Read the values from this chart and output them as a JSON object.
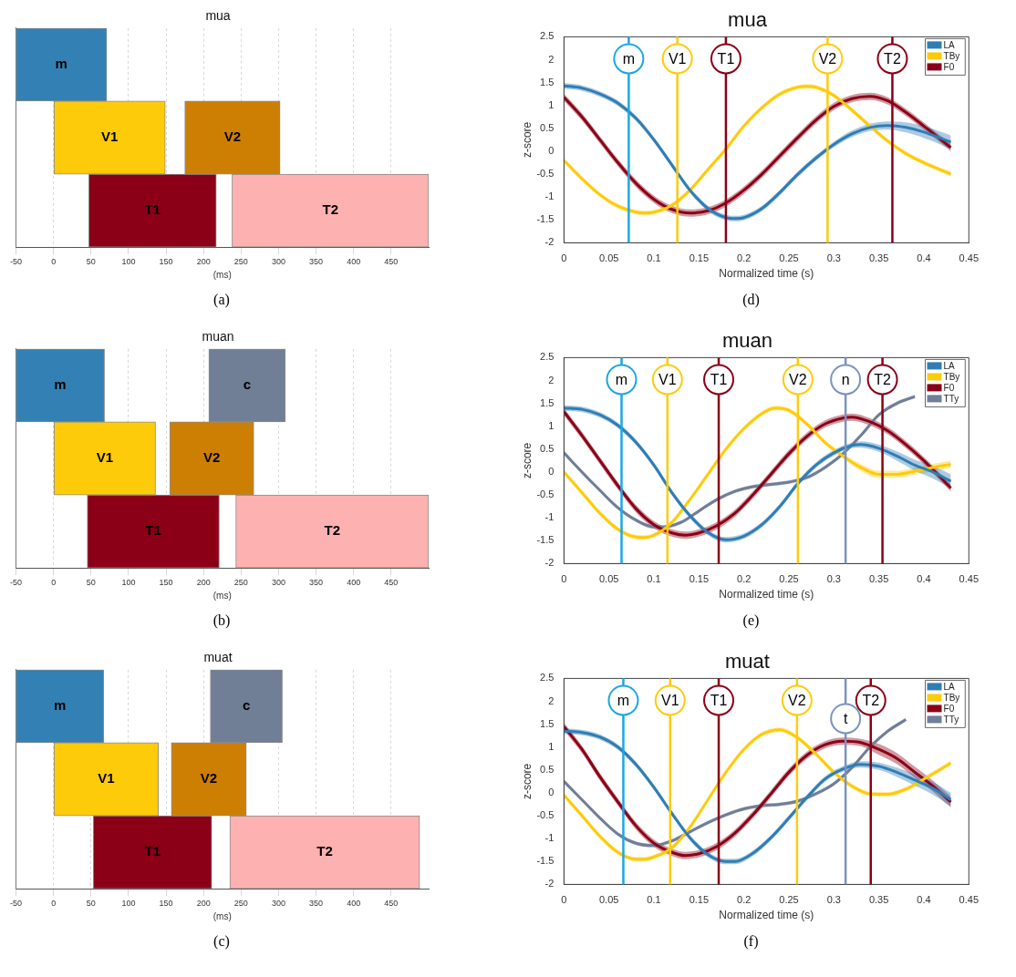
{
  "chart_data": [
    {
      "type": "bar",
      "orientation": "horizontal",
      "title": "mua",
      "xlabel": "(ms)",
      "categories": [
        null,
        null,
        null
      ],
      "xlim": [
        -50,
        500
      ],
      "xticks": [
        -50,
        0,
        50,
        100,
        150,
        200,
        250,
        300,
        350,
        400,
        450
      ],
      "grid": "x",
      "tick_labels": "x",
      "annotations": [
        "(a)"
      ],
      "series": [
        {
          "name": "m",
          "color": "#3380b4",
          "base": [
            -50,
            null,
            null
          ],
          "values": [
            121,
            null,
            null
          ]
        },
        {
          "name": "V1",
          "color": "#fecb0b",
          "base": [
            null,
            0,
            null
          ],
          "values": [
            null,
            149,
            null
          ]
        },
        {
          "name": "V2",
          "color": "#cd7f03",
          "base": [
            null,
            175,
            null
          ],
          "values": [
            null,
            127,
            null
          ]
        },
        {
          "name": "T1",
          "color": "#8b0016",
          "base": [
            null,
            null,
            47
          ],
          "values": [
            null,
            null,
            170
          ]
        },
        {
          "name": "T2",
          "color": "#feb1b1",
          "base": [
            null,
            null,
            238
          ],
          "values": [
            null,
            null,
            262
          ]
        }
      ]
    },
    {
      "type": "line",
      "title": "mua",
      "xlabel": "Normalized time (s)",
      "ylabel": "z-score",
      "xlim": [
        0,
        0.45
      ],
      "ylim": [
        -2,
        2.5
      ],
      "xticks": [
        0,
        0.05,
        0.1,
        0.15,
        0.2,
        0.25,
        0.3,
        0.35,
        0.4,
        0.45
      ],
      "yticks": [
        -2,
        -1.5,
        -1,
        -0.5,
        0,
        0.5,
        1,
        1.5,
        2,
        2.5
      ],
      "legend": "top right",
      "annotations": [
        "(d)"
      ],
      "ref_lines": [
        {
          "axis": "x",
          "value": 0.072,
          "label": "m",
          "color": "#1ca7e6"
        },
        {
          "axis": "x",
          "value": 0.126,
          "label": "V1",
          "color": "#fecb0b"
        },
        {
          "axis": "x",
          "value": 0.18,
          "label": "T1",
          "color": "#8b0016"
        },
        {
          "axis": "x",
          "value": 0.293,
          "label": "V2",
          "color": "#fecb0b"
        },
        {
          "axis": "x",
          "value": 0.365,
          "label": "T2",
          "color": "#8b0016"
        }
      ],
      "series": [
        {
          "name": "LA",
          "color": "#2f7db5",
          "x": [
            0,
            0.02,
            0.04,
            0.06,
            0.08,
            0.1,
            0.12,
            0.14,
            0.16,
            0.18,
            0.19,
            0.2,
            0.22,
            0.24,
            0.26,
            0.28,
            0.3,
            0.32,
            0.34,
            0.36,
            0.38,
            0.4,
            0.43
          ],
          "values": [
            1.43,
            1.38,
            1.25,
            1.05,
            0.72,
            0.25,
            -0.3,
            -0.85,
            -1.25,
            -1.45,
            -1.47,
            -1.45,
            -1.25,
            -0.9,
            -0.5,
            -0.15,
            0.15,
            0.38,
            0.52,
            0.56,
            0.52,
            0.42,
            0.2
          ],
          "lower": [
            1.37,
            1.32,
            1.19,
            0.99,
            0.66,
            0.19,
            -0.36,
            -0.91,
            -1.31,
            -1.51,
            -1.53,
            -1.51,
            -1.31,
            -0.96,
            -0.56,
            -0.21,
            0.09,
            0.31,
            0.44,
            0.47,
            0.41,
            0.29,
            0.05
          ],
          "upper": [
            1.49,
            1.44,
            1.31,
            1.11,
            0.78,
            0.31,
            -0.24,
            -0.79,
            -1.19,
            -1.39,
            -1.41,
            -1.39,
            -1.19,
            -0.84,
            -0.44,
            -0.09,
            0.21,
            0.45,
            0.6,
            0.65,
            0.63,
            0.55,
            0.35
          ]
        },
        {
          "name": "TBy",
          "color": "#fecb0b",
          "x": [
            0,
            0.02,
            0.04,
            0.06,
            0.08,
            0.09,
            0.1,
            0.12,
            0.14,
            0.16,
            0.18,
            0.2,
            0.22,
            0.24,
            0.26,
            0.27,
            0.28,
            0.3,
            0.32,
            0.34,
            0.36,
            0.38,
            0.4,
            0.43
          ],
          "values": [
            -0.2,
            -0.6,
            -0.95,
            -1.2,
            -1.33,
            -1.35,
            -1.33,
            -1.18,
            -0.85,
            -0.4,
            0.05,
            0.55,
            0.95,
            1.25,
            1.4,
            1.42,
            1.4,
            1.22,
            0.9,
            0.55,
            0.22,
            -0.05,
            -0.25,
            -0.5
          ],
          "lower": [
            -0.25,
            -0.65,
            -1,
            -1.25,
            -1.38,
            -1.4,
            -1.38,
            -1.23,
            -0.9,
            -0.45,
            0,
            0.5,
            0.9,
            1.2,
            1.35,
            1.37,
            1.35,
            1.17,
            0.85,
            0.5,
            0.17,
            -0.1,
            -0.3,
            -0.55
          ],
          "upper": [
            -0.15,
            -0.55,
            -0.9,
            -1.15,
            -1.28,
            -1.3,
            -1.28,
            -1.13,
            -0.8,
            -0.35,
            0.1,
            0.6,
            1,
            1.3,
            1.45,
            1.47,
            1.45,
            1.27,
            0.95,
            0.6,
            0.27,
            0,
            -0.2,
            -0.45
          ]
        },
        {
          "name": "F0",
          "color": "#8b0016",
          "x": [
            0,
            0.02,
            0.04,
            0.06,
            0.08,
            0.1,
            0.12,
            0.14,
            0.16,
            0.18,
            0.2,
            0.22,
            0.24,
            0.26,
            0.28,
            0.3,
            0.32,
            0.34,
            0.36,
            0.38,
            0.4,
            0.43
          ],
          "values": [
            1.18,
            0.75,
            0.25,
            -0.25,
            -0.7,
            -1.05,
            -1.27,
            -1.35,
            -1.3,
            -1.13,
            -0.85,
            -0.5,
            -0.1,
            0.3,
            0.68,
            0.98,
            1.15,
            1.2,
            1.1,
            0.85,
            0.55,
            0.08
          ],
          "lower": [
            1.1,
            0.67,
            0.17,
            -0.33,
            -0.78,
            -1.13,
            -1.35,
            -1.43,
            -1.38,
            -1.21,
            -0.93,
            -0.58,
            -0.18,
            0.22,
            0.6,
            0.9,
            1.07,
            1.12,
            1.02,
            0.77,
            0.47,
            0
          ],
          "upper": [
            1.26,
            0.83,
            0.33,
            -0.17,
            -0.62,
            -0.97,
            -1.19,
            -1.27,
            -1.22,
            -1.05,
            -0.77,
            -0.42,
            -0.02,
            0.38,
            0.76,
            1.06,
            1.23,
            1.28,
            1.18,
            0.93,
            0.63,
            0.16
          ]
        }
      ]
    },
    {
      "type": "bar",
      "orientation": "horizontal",
      "title": "muan",
      "xlabel": "(ms)",
      "categories": [
        null,
        null,
        null
      ],
      "xlim": [
        -50,
        500
      ],
      "xticks": [
        -50,
        0,
        50,
        100,
        150,
        200,
        250,
        300,
        350,
        400,
        450
      ],
      "grid": "x",
      "tick_labels": "x",
      "annotations": [
        "(b)"
      ],
      "series": [
        {
          "name": "m",
          "color": "#3380b4",
          "base": [
            -50,
            null,
            null
          ],
          "values": [
            118,
            null,
            null
          ]
        },
        {
          "name": "c",
          "color": "#707e96",
          "base": [
            207,
            null,
            null
          ],
          "values": [
            102,
            null,
            null
          ]
        },
        {
          "name": "V1",
          "color": "#fecb0b",
          "base": [
            null,
            0,
            null
          ],
          "values": [
            null,
            136,
            null
          ]
        },
        {
          "name": "V2",
          "color": "#cd7f03",
          "base": [
            null,
            155,
            null
          ],
          "values": [
            null,
            112,
            null
          ]
        },
        {
          "name": "T1",
          "color": "#8b0016",
          "base": [
            null,
            null,
            45
          ],
          "values": [
            null,
            null,
            176
          ]
        },
        {
          "name": "T2",
          "color": "#feb1b1",
          "base": [
            null,
            null,
            243
          ],
          "values": [
            null,
            null,
            257
          ]
        }
      ]
    },
    {
      "type": "line",
      "title": "muan",
      "xlabel": "Normalized time (s)",
      "ylabel": "z-score",
      "xlim": [
        0,
        0.45
      ],
      "ylim": [
        -2,
        2.5
      ],
      "xticks": [
        0,
        0.05,
        0.1,
        0.15,
        0.2,
        0.25,
        0.3,
        0.35,
        0.4,
        0.45
      ],
      "yticks": [
        -2,
        -1.5,
        -1,
        -0.5,
        0,
        0.5,
        1,
        1.5,
        2,
        2.5
      ],
      "legend": "top right",
      "annotations": [
        "(e)"
      ],
      "ref_lines": [
        {
          "axis": "x",
          "value": 0.064,
          "label": "m",
          "color": "#1ca7e6"
        },
        {
          "axis": "x",
          "value": 0.115,
          "label": "V1",
          "color": "#fecb0b"
        },
        {
          "axis": "x",
          "value": 0.172,
          "label": "T1",
          "color": "#8b0016"
        },
        {
          "axis": "x",
          "value": 0.26,
          "label": "V2",
          "color": "#fecb0b"
        },
        {
          "axis": "x",
          "value": 0.354,
          "label": "T2",
          "color": "#8b0016"
        },
        {
          "axis": "x",
          "value": 0.313,
          "label": "n",
          "color": "#7b93bf"
        }
      ],
      "series": [
        {
          "name": "LA",
          "color": "#2f7db5",
          "x": [
            0,
            0.02,
            0.04,
            0.06,
            0.08,
            0.1,
            0.12,
            0.14,
            0.16,
            0.18,
            0.2,
            0.22,
            0.24,
            0.26,
            0.28,
            0.3,
            0.32,
            0.33,
            0.35,
            0.37,
            0.39,
            0.41,
            0.43
          ],
          "values": [
            1.4,
            1.37,
            1.25,
            1.02,
            0.65,
            0.15,
            -0.45,
            -0.95,
            -1.32,
            -1.48,
            -1.4,
            -1.15,
            -0.75,
            -0.25,
            0.15,
            0.42,
            0.58,
            0.6,
            0.52,
            0.35,
            0.15,
            0,
            -0.2
          ],
          "lower": [
            1.34,
            1.31,
            1.19,
            0.96,
            0.59,
            0.09,
            -0.51,
            -1.01,
            -1.38,
            -1.54,
            -1.46,
            -1.21,
            -0.81,
            -0.31,
            0.09,
            0.36,
            0.52,
            0.53,
            0.44,
            0.25,
            0.03,
            -0.14,
            -0.35
          ],
          "upper": [
            1.46,
            1.43,
            1.31,
            1.08,
            0.71,
            0.21,
            -0.39,
            -0.89,
            -1.26,
            -1.42,
            -1.34,
            -1.09,
            -0.69,
            -0.19,
            0.21,
            0.48,
            0.64,
            0.67,
            0.6,
            0.45,
            0.27,
            0.14,
            -0.05
          ]
        },
        {
          "name": "TBy",
          "color": "#fecb0b",
          "x": [
            0,
            0.02,
            0.04,
            0.06,
            0.08,
            0.09,
            0.1,
            0.12,
            0.14,
            0.16,
            0.18,
            0.2,
            0.22,
            0.235,
            0.25,
            0.27,
            0.29,
            0.31,
            0.33,
            0.35,
            0.37,
            0.39,
            0.41,
            0.43
          ],
          "values": [
            0,
            -0.45,
            -0.9,
            -1.25,
            -1.42,
            -1.43,
            -1.38,
            -1.1,
            -0.6,
            -0.05,
            0.5,
            0.95,
            1.28,
            1.4,
            1.35,
            1.05,
            0.65,
            0.35,
            0.1,
            -0.05,
            -0.05,
            0.02,
            0.1,
            0.17
          ],
          "lower": [
            -0.05,
            -0.5,
            -0.95,
            -1.3,
            -1.47,
            -1.48,
            -1.43,
            -1.15,
            -0.65,
            -0.1,
            0.45,
            0.9,
            1.23,
            1.35,
            1.3,
            1,
            0.6,
            0.3,
            0.02,
            -0.13,
            -0.13,
            -0.06,
            0.02,
            0.09
          ],
          "upper": [
            0.05,
            -0.4,
            -0.85,
            -1.2,
            -1.37,
            -1.38,
            -1.33,
            -1.05,
            -0.55,
            0,
            0.55,
            1,
            1.33,
            1.45,
            1.4,
            1.1,
            0.7,
            0.4,
            0.18,
            0.03,
            0.03,
            0.1,
            0.18,
            0.25
          ]
        },
        {
          "name": "F0",
          "color": "#8b0016",
          "x": [
            0,
            0.02,
            0.04,
            0.06,
            0.08,
            0.1,
            0.12,
            0.135,
            0.15,
            0.17,
            0.19,
            0.21,
            0.23,
            0.25,
            0.27,
            0.29,
            0.31,
            0.32,
            0.34,
            0.36,
            0.38,
            0.4,
            0.43
          ],
          "values": [
            1.32,
            0.8,
            0.25,
            -0.3,
            -0.8,
            -1.15,
            -1.33,
            -1.38,
            -1.33,
            -1.17,
            -0.9,
            -0.5,
            -0.05,
            0.4,
            0.78,
            1.05,
            1.18,
            1.2,
            1.1,
            0.9,
            0.6,
            0.25,
            -0.35
          ],
          "lower": [
            1.24,
            0.72,
            0.17,
            -0.38,
            -0.88,
            -1.23,
            -1.41,
            -1.46,
            -1.41,
            -1.25,
            -0.98,
            -0.58,
            -0.13,
            0.32,
            0.7,
            0.97,
            1.1,
            1.12,
            1.02,
            0.82,
            0.52,
            0.17,
            -0.43
          ],
          "upper": [
            1.4,
            0.88,
            0.33,
            -0.22,
            -0.72,
            -1.07,
            -1.25,
            -1.3,
            -1.25,
            -1.09,
            -0.82,
            -0.42,
            0.03,
            0.48,
            0.86,
            1.13,
            1.26,
            1.28,
            1.18,
            0.98,
            0.68,
            0.33,
            -0.27
          ]
        },
        {
          "name": "TTy",
          "color": "#6f7e99",
          "x": [
            0,
            0.02,
            0.04,
            0.06,
            0.08,
            0.1,
            0.11,
            0.13,
            0.15,
            0.17,
            0.19,
            0.21,
            0.23,
            0.25,
            0.27,
            0.29,
            0.31,
            0.33,
            0.35,
            0.37,
            0.39
          ],
          "values": [
            0.42,
            0,
            -0.4,
            -0.78,
            -1.05,
            -1.2,
            -1.2,
            -1.1,
            -0.85,
            -0.6,
            -0.42,
            -0.32,
            -0.27,
            -0.22,
            -0.12,
            0.1,
            0.4,
            0.8,
            1.25,
            1.5,
            1.65
          ],
          "lower": [
            0.38,
            -0.04,
            -0.44,
            -0.82,
            -1.09,
            -1.24,
            -1.24,
            -1.14,
            -0.89,
            -0.64,
            -0.46,
            -0.36,
            -0.31,
            -0.26,
            -0.16,
            0.06,
            0.36,
            0.76,
            1.21,
            1.46,
            1.61
          ],
          "upper": [
            0.46,
            0.04,
            -0.36,
            -0.74,
            -1.01,
            -1.16,
            -1.16,
            -1.06,
            -0.81,
            -0.56,
            -0.38,
            -0.28,
            -0.23,
            -0.18,
            -0.08,
            0.14,
            0.44,
            0.84,
            1.29,
            1.54,
            1.69
          ]
        }
      ]
    },
    {
      "type": "bar",
      "orientation": "horizontal",
      "title": "muat",
      "xlabel": "(ms)",
      "categories": [
        null,
        null,
        null
      ],
      "xlim": [
        -50,
        500
      ],
      "xticks": [
        -50,
        0,
        50,
        100,
        150,
        200,
        250,
        300,
        350,
        400,
        450
      ],
      "grid": "x",
      "tick_labels": "x",
      "annotations": [
        "(c)"
      ],
      "series": [
        {
          "name": "m",
          "color": "#3380b4",
          "base": [
            -50,
            null,
            null
          ],
          "values": [
            117,
            null,
            null
          ]
        },
        {
          "name": "c",
          "color": "#707e96",
          "base": [
            209,
            null,
            null
          ],
          "values": [
            96,
            null,
            null
          ]
        },
        {
          "name": "V1",
          "color": "#fecb0b",
          "base": [
            null,
            0,
            null
          ],
          "values": [
            null,
            140,
            null
          ]
        },
        {
          "name": "V2",
          "color": "#cd7f03",
          "base": [
            null,
            157,
            null
          ],
          "values": [
            null,
            100,
            null
          ]
        },
        {
          "name": "T1",
          "color": "#8b0016",
          "base": [
            null,
            null,
            53
          ],
          "values": [
            null,
            null,
            158
          ]
        },
        {
          "name": "T2",
          "color": "#feb1b1",
          "base": [
            null,
            null,
            235
          ],
          "values": [
            null,
            null,
            253
          ]
        }
      ]
    },
    {
      "type": "line",
      "title": "muat",
      "xlabel": "Normalized time (s)",
      "ylabel": "z-score",
      "xlim": [
        0,
        0.45
      ],
      "ylim": [
        -2,
        2.5
      ],
      "xticks": [
        0,
        0.05,
        0.1,
        0.15,
        0.2,
        0.25,
        0.3,
        0.35,
        0.4,
        0.45
      ],
      "yticks": [
        -2,
        -1.5,
        -1,
        -0.5,
        0,
        0.5,
        1,
        1.5,
        2,
        2.5
      ],
      "legend": "top right",
      "annotations": [
        "(f)"
      ],
      "ref_lines": [
        {
          "axis": "x",
          "value": 0.066,
          "label": "m",
          "color": "#1ca7e6"
        },
        {
          "axis": "x",
          "value": 0.118,
          "label": "V1",
          "color": "#fecb0b"
        },
        {
          "axis": "x",
          "value": 0.172,
          "label": "T1",
          "color": "#8b0016"
        },
        {
          "axis": "x",
          "value": 0.259,
          "label": "V2",
          "color": "#fecb0b"
        },
        {
          "axis": "x",
          "value": 0.341,
          "label": "T2",
          "color": "#8b0016"
        },
        {
          "axis": "x",
          "value": 0.313,
          "label": "t",
          "color": "#7b93bf"
        }
      ],
      "series": [
        {
          "name": "LA",
          "color": "#2f7db5",
          "x": [
            0,
            0.02,
            0.04,
            0.06,
            0.08,
            0.1,
            0.12,
            0.14,
            0.16,
            0.18,
            0.19,
            0.21,
            0.23,
            0.25,
            0.27,
            0.29,
            0.31,
            0.33,
            0.35,
            0.37,
            0.39,
            0.41,
            0.43
          ],
          "values": [
            1.35,
            1.32,
            1.22,
            1,
            0.62,
            0.12,
            -0.45,
            -0.98,
            -1.35,
            -1.5,
            -1.5,
            -1.32,
            -0.98,
            -0.55,
            -0.1,
            0.3,
            0.52,
            0.62,
            0.58,
            0.45,
            0.28,
            0.1,
            -0.15
          ],
          "lower": [
            1.29,
            1.26,
            1.16,
            0.94,
            0.56,
            0.06,
            -0.51,
            -1.04,
            -1.41,
            -1.56,
            -1.56,
            -1.38,
            -1.04,
            -0.61,
            -0.16,
            0.24,
            0.46,
            0.55,
            0.5,
            0.35,
            0.16,
            -0.04,
            -0.3
          ],
          "upper": [
            1.41,
            1.38,
            1.28,
            1.06,
            0.68,
            0.18,
            -0.39,
            -0.92,
            -1.29,
            -1.44,
            -1.44,
            -1.26,
            -0.92,
            -0.49,
            -0.04,
            0.36,
            0.58,
            0.69,
            0.66,
            0.55,
            0.4,
            0.24,
            0
          ]
        },
        {
          "name": "TBy",
          "color": "#fecb0b",
          "x": [
            0,
            0.02,
            0.04,
            0.06,
            0.08,
            0.09,
            0.1,
            0.12,
            0.14,
            0.16,
            0.18,
            0.2,
            0.22,
            0.24,
            0.26,
            0.28,
            0.3,
            0.32,
            0.34,
            0.36,
            0.38,
            0.4,
            0.43
          ],
          "values": [
            -0.05,
            -0.5,
            -0.95,
            -1.3,
            -1.45,
            -1.45,
            -1.4,
            -1.2,
            -0.75,
            -0.15,
            0.45,
            0.95,
            1.28,
            1.38,
            1.2,
            0.85,
            0.45,
            0.15,
            -0.02,
            -0.03,
            0.08,
            0.3,
            0.65
          ],
          "lower": [
            -0.1,
            -0.55,
            -1,
            -1.35,
            -1.5,
            -1.5,
            -1.45,
            -1.25,
            -0.8,
            -0.2,
            0.4,
            0.9,
            1.23,
            1.33,
            1.15,
            0.8,
            0.4,
            0.1,
            -0.07,
            -0.08,
            0.03,
            0.25,
            0.6
          ],
          "upper": [
            0,
            -0.45,
            -0.9,
            -1.25,
            -1.4,
            -1.4,
            -1.35,
            -1.15,
            -0.7,
            -0.1,
            0.5,
            1,
            1.33,
            1.43,
            1.25,
            0.9,
            0.5,
            0.2,
            0.03,
            0.02,
            0.13,
            0.35,
            0.7
          ]
        },
        {
          "name": "F0",
          "color": "#8b0016",
          "x": [
            0,
            0.02,
            0.04,
            0.06,
            0.08,
            0.1,
            0.12,
            0.135,
            0.15,
            0.17,
            0.19,
            0.21,
            0.23,
            0.25,
            0.27,
            0.29,
            0.31,
            0.33,
            0.35,
            0.37,
            0.39,
            0.41,
            0.43
          ],
          "values": [
            1.45,
            0.95,
            0.35,
            -0.2,
            -0.72,
            -1.1,
            -1.3,
            -1.37,
            -1.33,
            -1.17,
            -0.88,
            -0.48,
            -0.02,
            0.45,
            0.82,
            1.05,
            1.13,
            1.1,
            0.95,
            0.75,
            0.45,
            0.15,
            -0.2
          ],
          "lower": [
            1.37,
            0.87,
            0.27,
            -0.28,
            -0.8,
            -1.18,
            -1.38,
            -1.45,
            -1.41,
            -1.25,
            -0.96,
            -0.56,
            -0.1,
            0.37,
            0.74,
            0.97,
            1.05,
            1.02,
            0.83,
            0.63,
            0.33,
            0.03,
            -0.32
          ],
          "upper": [
            1.53,
            1.03,
            0.43,
            -0.12,
            -0.64,
            -1.02,
            -1.22,
            -1.29,
            -1.25,
            -1.09,
            -0.8,
            -0.4,
            0.06,
            0.53,
            0.9,
            1.13,
            1.21,
            1.18,
            1.07,
            0.87,
            0.57,
            0.27,
            -0.08
          ]
        },
        {
          "name": "TTy",
          "color": "#6f7e99",
          "x": [
            0,
            0.02,
            0.04,
            0.06,
            0.08,
            0.1,
            0.12,
            0.14,
            0.16,
            0.18,
            0.2,
            0.22,
            0.24,
            0.26,
            0.28,
            0.3,
            0.32,
            0.34,
            0.36,
            0.38
          ],
          "values": [
            0.25,
            -0.15,
            -0.55,
            -0.9,
            -1.1,
            -1.15,
            -1.05,
            -0.85,
            -0.65,
            -0.48,
            -0.35,
            -0.28,
            -0.25,
            -0.18,
            -0.02,
            0.2,
            0.55,
            1,
            1.35,
            1.6
          ],
          "lower": [
            0.21,
            -0.19,
            -0.59,
            -0.94,
            -1.14,
            -1.19,
            -1.09,
            -0.89,
            -0.69,
            -0.52,
            -0.39,
            -0.32,
            -0.29,
            -0.22,
            -0.06,
            0.16,
            0.51,
            0.96,
            1.31,
            1.56
          ],
          "upper": [
            0.29,
            -0.11,
            -0.51,
            -0.86,
            -1.06,
            -1.11,
            -1.01,
            -0.81,
            -0.61,
            -0.44,
            -0.31,
            -0.24,
            -0.21,
            -0.14,
            0.02,
            0.24,
            0.59,
            1.04,
            1.39,
            1.64
          ]
        }
      ]
    }
  ]
}
